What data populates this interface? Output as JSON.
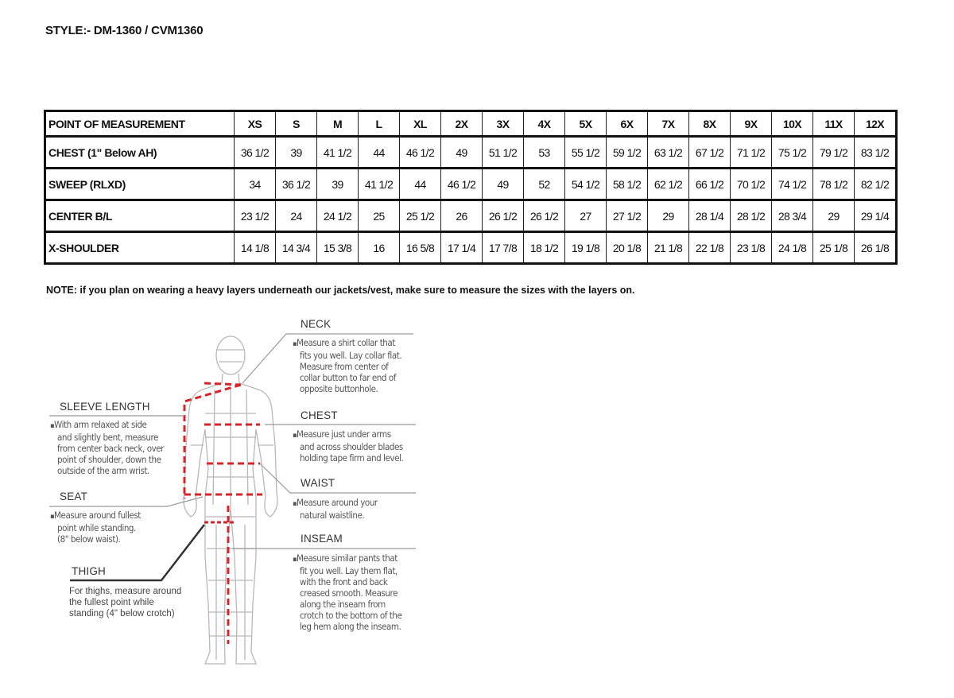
{
  "style_line": "STYLE:- DM-1360 / CVM1360",
  "table": {
    "header": [
      "POINT OF MEASUREMENT",
      "XS",
      "S",
      "M",
      "L",
      "XL",
      "2X",
      "3X",
      "4X",
      "5X",
      "6X",
      "7X",
      "8X",
      "9X",
      "10X",
      "11X",
      "12X"
    ],
    "rows": [
      {
        "label": "CHEST (1\" Below AH)",
        "values": [
          "36 1/2",
          "39",
          "41 1/2",
          "44",
          "46 1/2",
          "49",
          "51 1/2",
          "53",
          "55 1/2",
          "59 1/2",
          "63 1/2",
          "67 1/2",
          "71 1/2",
          "75 1/2",
          "79 1/2",
          "83 1/2"
        ]
      },
      {
        "label": "SWEEP (RLXD)",
        "values": [
          "34",
          "36 1/2",
          "39",
          "41 1/2",
          "44",
          "46 1/2",
          "49",
          "52",
          "54 1/2",
          "58 1/2",
          "62 1/2",
          "66 1/2",
          "70 1/2",
          "74 1/2",
          "78 1/2",
          "82 1/2"
        ]
      },
      {
        "label": "CENTER B/L",
        "values": [
          "23 1/2",
          "24",
          "24 1/2",
          "25",
          "25 1/2",
          "26",
          "26 1/2",
          "26 1/2",
          "27",
          "27 1/2",
          "29",
          "28 1/4",
          "28 1/2",
          "28 3/4",
          "29",
          "29 1/4"
        ]
      },
      {
        "label": "X-SHOULDER",
        "values": [
          "14 1/8",
          "14 3/4",
          "15 3/8",
          "16",
          "16 5/8",
          "17 1/4",
          "17 7/8",
          "18 1/2",
          "19 1/8",
          "20 1/8",
          "21 1/8",
          "22 1/8",
          "23 1/8",
          "24 1/8",
          "25 1/8",
          "26 1/8"
        ]
      }
    ]
  },
  "note": "NOTE: if you plan on wearing a heavy layers underneath our jackets/vest, make sure to measure the sizes with the layers on.",
  "diagram": {
    "neck": {
      "title": "NECK",
      "lines": [
        "Measure a shirt collar that",
        "fits you well. Lay collar flat.",
        "Measure from center of",
        "collar button to far end of",
        "opposite buttonhole."
      ]
    },
    "sleeve": {
      "title": "SLEEVE LENGTH",
      "lines": [
        "With arm relaxed at side",
        "and slightly bent, measure",
        "from center back neck, over",
        "point of shoulder, down the",
        "outside of the arm wrist."
      ]
    },
    "chest": {
      "title": "CHEST",
      "lines": [
        "Measure just under arms",
        "and across shoulder blades",
        "holding tape firm and level."
      ]
    },
    "waist": {
      "title": "WAIST",
      "lines": [
        "Measure around your",
        "natural waistline."
      ]
    },
    "seat": {
      "title": "SEAT",
      "lines": [
        "Measure around fullest",
        "point while standing.",
        "(8\" below waist)."
      ]
    },
    "inseam": {
      "title": "INSEAM",
      "lines": [
        "Measure similar pants that",
        "fit you well. Lay them flat,",
        "with the front and back",
        "creased smooth. Measure",
        "along the inseam from",
        "crotch to the bottom of the",
        "leg hem along the inseam."
      ]
    },
    "thigh": {
      "title": "THIGH",
      "lines": [
        "For thighs, measure around",
        "the fullest point while",
        "standing (4\" below crotch)"
      ]
    },
    "measure_line_color": "#d8232a"
  }
}
